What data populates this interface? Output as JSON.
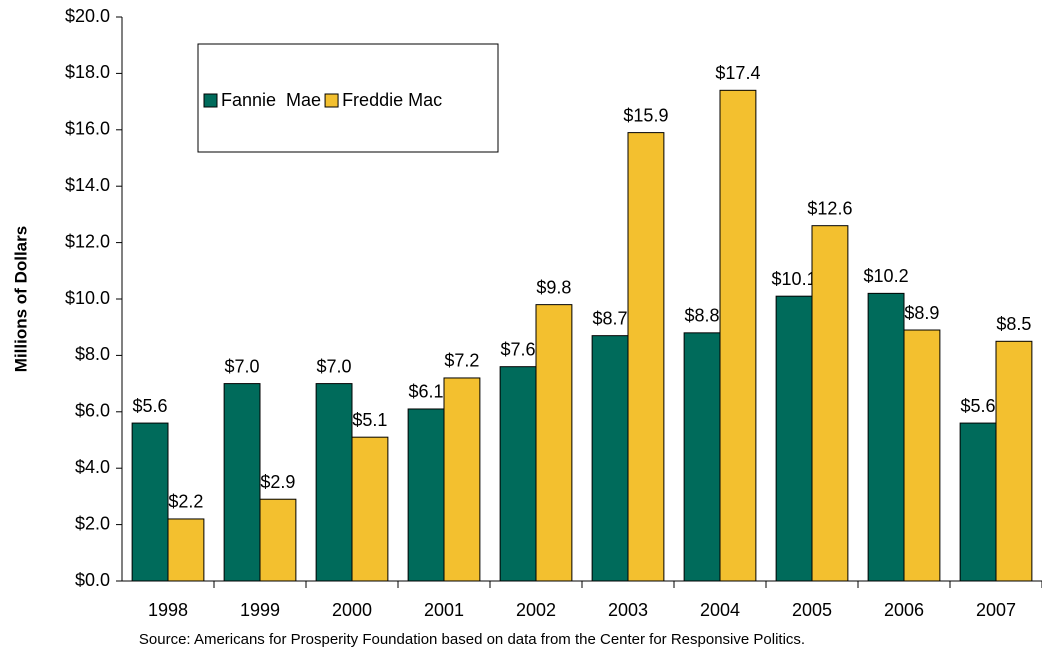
{
  "chart_data": {
    "type": "bar",
    "ylabel": "Millions of Dollars",
    "source": "Source: Americans for Prosperity Foundation based on data from the Center for Responsive Politics.",
    "categories": [
      "1998",
      "1999",
      "2000",
      "2001",
      "2002",
      "2003",
      "2004",
      "2005",
      "2006",
      "2007"
    ],
    "series": [
      {
        "name": "Fannie  Mae",
        "color": "#006b5b",
        "values": [
          5.6,
          7.0,
          7.0,
          6.1,
          7.6,
          8.7,
          8.8,
          10.1,
          10.2,
          5.6
        ],
        "value_labels": [
          "$5.6",
          "$7.0",
          "$7.0",
          "$6.1",
          "$7.6",
          "$8.7",
          "$8.8",
          "$10.1",
          "$10.2",
          "$5.6"
        ]
      },
      {
        "name": "Freddie Mac",
        "color": "#f3c02f",
        "values": [
          2.2,
          2.9,
          5.1,
          7.2,
          9.8,
          15.9,
          17.4,
          12.6,
          8.9,
          8.5
        ],
        "value_labels": [
          "$2.2",
          "$2.9",
          "$5.1",
          "$7.2",
          "$9.8",
          "$15.9",
          "$17.4",
          "$12.6",
          "$8.9",
          "$8.5"
        ]
      }
    ],
    "ylim": [
      0,
      20
    ],
    "yticks": [
      {
        "value": 0,
        "label": "$0.0"
      },
      {
        "value": 2,
        "label": "$2.0"
      },
      {
        "value": 4,
        "label": "$4.0"
      },
      {
        "value": 6,
        "label": "$6.0"
      },
      {
        "value": 8,
        "label": "$8.0"
      },
      {
        "value": 10,
        "label": "$10.0"
      },
      {
        "value": 12,
        "label": "$12.0"
      },
      {
        "value": 14,
        "label": "$14.0"
      },
      {
        "value": 16,
        "label": "$16.0"
      },
      {
        "value": 18,
        "label": "$18.0"
      },
      {
        "value": 20,
        "label": "$20.0"
      }
    ],
    "legend": "upper left",
    "grid": false
  }
}
